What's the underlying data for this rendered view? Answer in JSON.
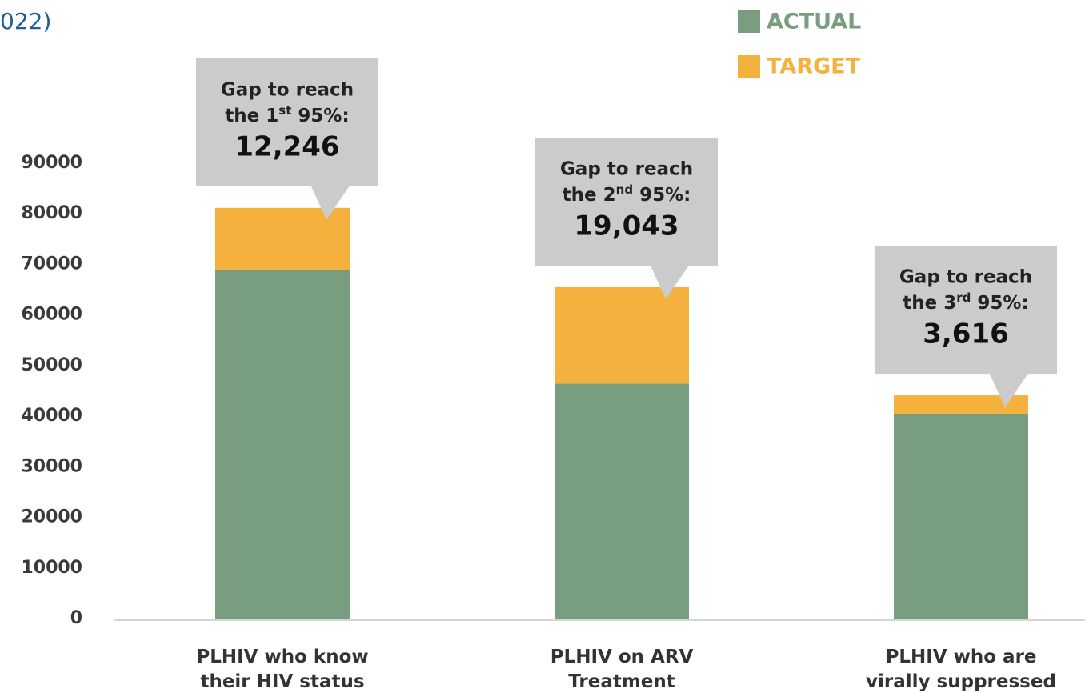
{
  "chart_data": {
    "type": "stacked_bar",
    "title": "022)",
    "categories": [
      "PLHIV who know\ntheir HIV status",
      "PLHIV on ARV\nTreatment",
      "PLHIV who are\nvirally suppressed"
    ],
    "series": [
      {
        "name": "ACTUAL",
        "color": "#789d7f",
        "values": [
          68930,
          46450,
          40500
        ]
      },
      {
        "name": "TARGET",
        "color": "#f5b13d",
        "values": [
          12246,
          19043,
          3616
        ],
        "value_labels": [
          "12,246",
          "19,043",
          "3,616"
        ]
      }
    ],
    "annotations": [
      {
        "line1": "Gap to reach",
        "line2": [
          "the 1",
          "st",
          " 95%:"
        ]
      },
      {
        "line1": "Gap to reach",
        "line2": [
          "the 2",
          "nd",
          " 95%:"
        ]
      },
      {
        "line1": "Gap to reach",
        "line2": [
          "the 3",
          "rd",
          " 95%:"
        ]
      }
    ],
    "ylim": [
      0,
      90000
    ],
    "yticks": [
      0,
      10000,
      20000,
      30000,
      40000,
      50000,
      60000,
      70000,
      80000,
      90000
    ],
    "grid": false,
    "legend": "top-right"
  }
}
